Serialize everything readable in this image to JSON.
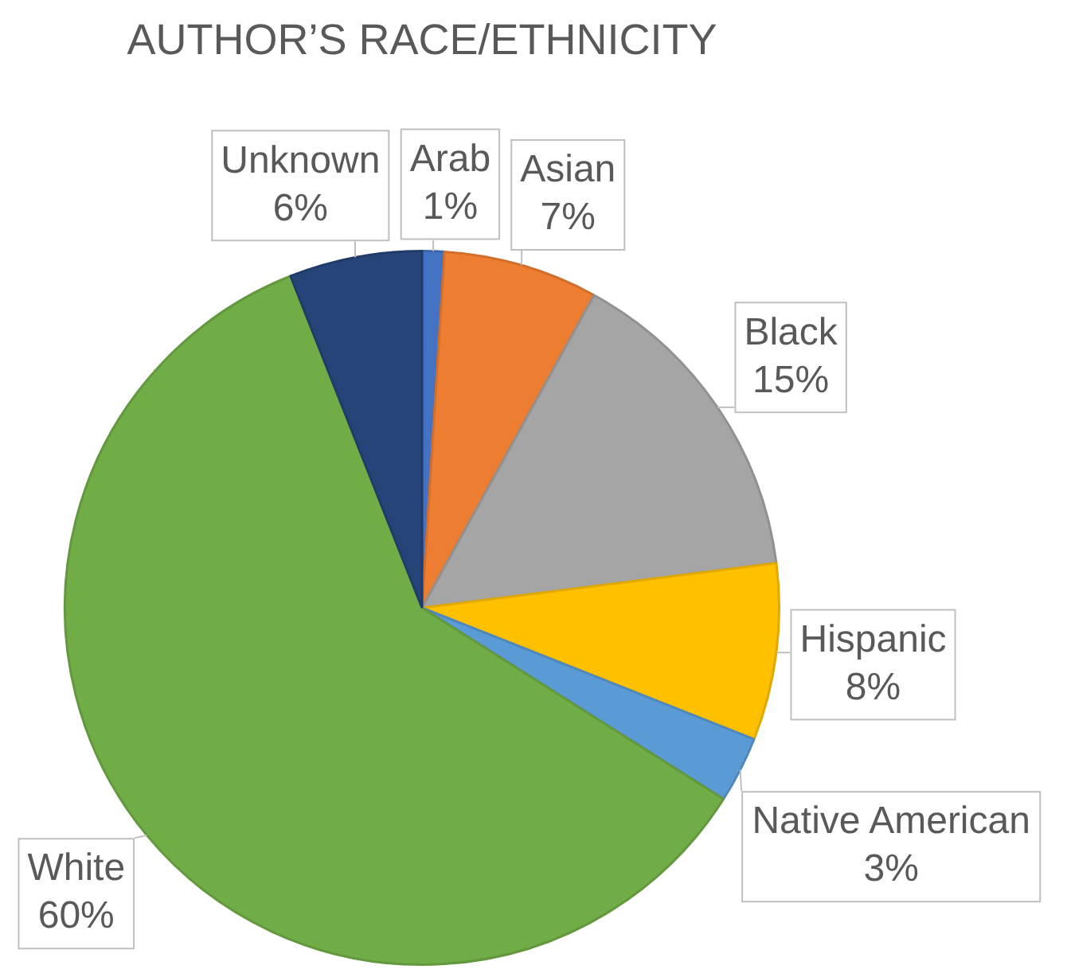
{
  "chart_data": {
    "type": "pie",
    "title": "AUTHOR’S RACE/ETHNICITY",
    "categories": [
      "Arab",
      "Asian",
      "Black",
      "Hispanic",
      "Native American",
      "White",
      "Unknown"
    ],
    "values": [
      1,
      7,
      15,
      8,
      3,
      60,
      6
    ],
    "colors": [
      "#4472c4",
      "#ed7d31",
      "#a5a5a5",
      "#ffc000",
      "#5b9bd5",
      "#70ad47",
      "#264478"
    ],
    "value_labels": [
      "1%",
      "7%",
      "15%",
      "8%",
      "3%",
      "60%",
      "6%"
    ]
  }
}
